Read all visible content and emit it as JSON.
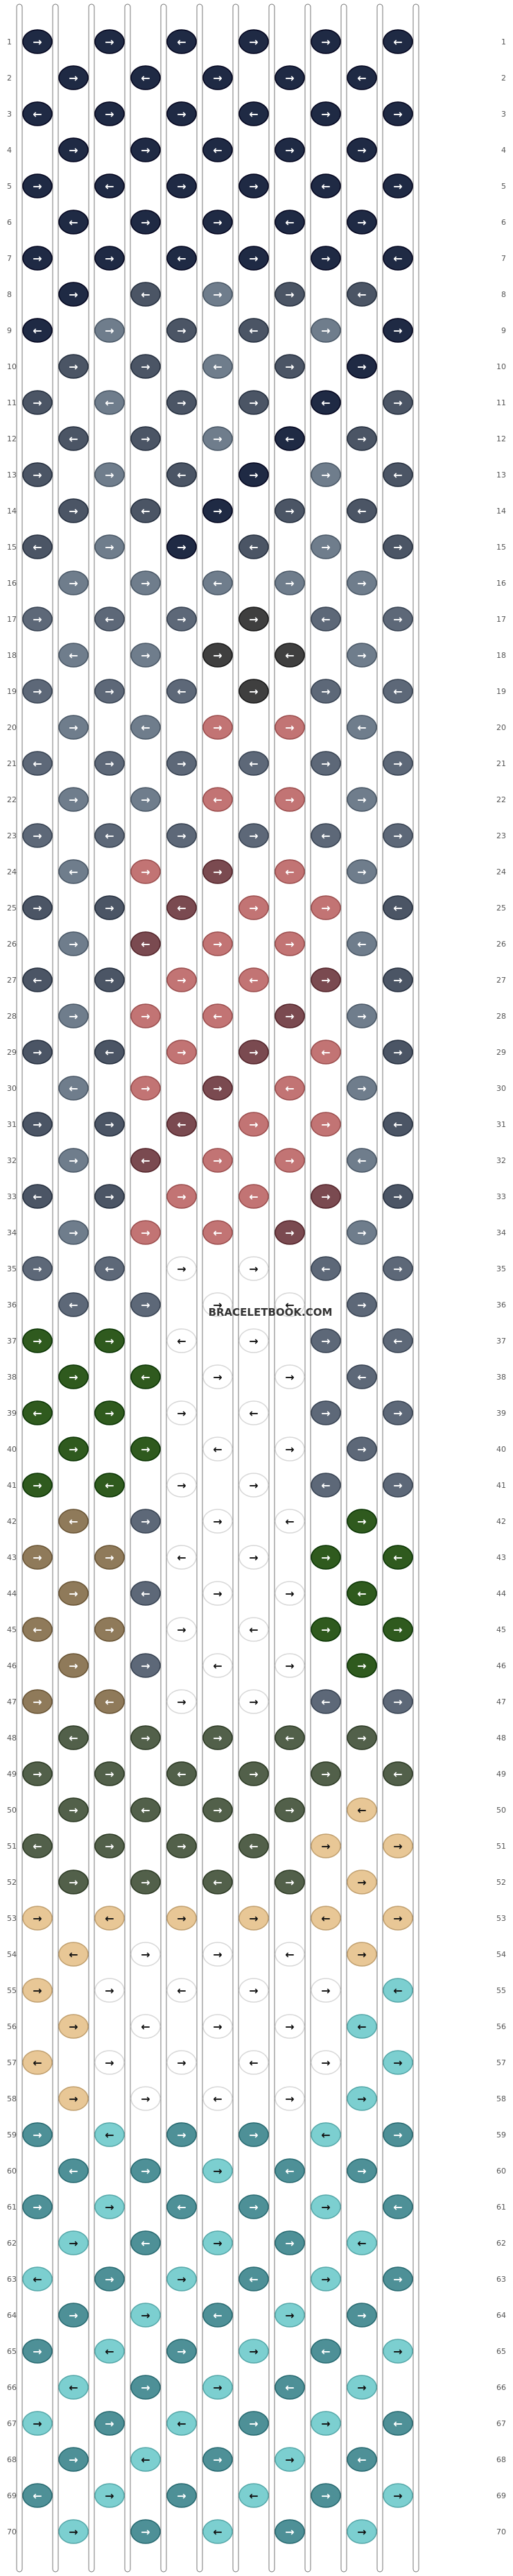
{
  "watermark": "BRACELETBOOK.COM",
  "rows": [
    "1",
    "2",
    "3",
    "4",
    "5",
    "6",
    "7",
    "8",
    "9",
    "10",
    "11",
    "12",
    "13",
    "14",
    "15",
    "16",
    "17",
    "18",
    "19",
    "20",
    "21",
    "22",
    "23",
    "24",
    "25",
    "26",
    "27",
    "28",
    "29",
    "30",
    "31",
    "32",
    "33",
    "34",
    "35",
    "36",
    "37",
    "38",
    "39",
    "40",
    "41",
    "42",
    "43",
    "44",
    "45",
    "46",
    "47",
    "48",
    "49",
    "50",
    "51",
    "52",
    "53",
    "54",
    "55",
    "56",
    "57",
    "58",
    "59",
    "60",
    "61",
    "62",
    "63",
    "64",
    "65",
    "66",
    "67",
    "68",
    "69",
    "70"
  ],
  "colors": {
    "navy": "#1f2a44",
    "slate_dark": "#4b5565",
    "slate": "#5d6878",
    "slate_light": "#6f7d8c",
    "charcoal": "#3f3f3f",
    "rose": "#c27474",
    "maroon": "#7a4a50",
    "white": "#ffffff",
    "forest": "#2f5a1e",
    "olive": "#52604a",
    "tan": "#8f7a5a",
    "sand": "#e8c796",
    "teal": "#4e9097",
    "aqua": "#7ccfd0"
  },
  "icons": [
    "arrow-right-icon",
    "arrow-left-icon"
  ]
}
